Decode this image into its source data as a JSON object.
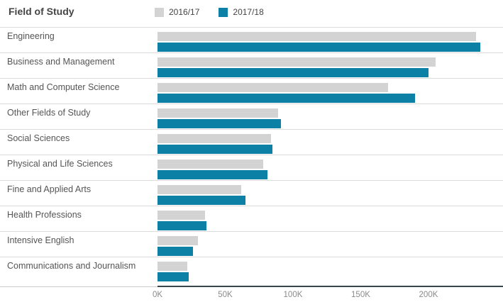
{
  "chart_data": {
    "type": "bar",
    "orientation": "horizontal",
    "title": "Field of Study",
    "categories": [
      "Engineering",
      "Business and Management",
      "Math and Computer Science",
      "Other Fields of Study",
      "Social Sciences",
      "Physical and Life Sciences",
      "Fine and Applied Arts",
      "Health Professions",
      "Intensive English",
      "Communications and Journalism"
    ],
    "series": [
      {
        "name": "2016/17",
        "color": "#d3d3d3",
        "values": [
          235000,
          205000,
          170000,
          89000,
          84000,
          78000,
          62000,
          35000,
          30000,
          22000
        ]
      },
      {
        "name": "2017/18",
        "color": "#0d80a6",
        "values": [
          238000,
          200000,
          190000,
          91000,
          85000,
          81000,
          65000,
          36000,
          26000,
          23000
        ]
      }
    ],
    "xlabel": "",
    "ylabel": "Field of Study",
    "xlim": [
      0,
      255000
    ],
    "x_ticks": [
      {
        "value": 0,
        "label": "0K"
      },
      {
        "value": 50000,
        "label": "50K"
      },
      {
        "value": 100000,
        "label": "100K"
      },
      {
        "value": 150000,
        "label": "150K"
      },
      {
        "value": 200000,
        "label": "200K"
      }
    ],
    "legend_position": "top",
    "grid": false
  },
  "style_colors": {
    "title_text": "#444444",
    "category_text": "#555555",
    "tick_text": "#8b8b8b",
    "axis_line": "#36454e",
    "row_separator": "#dcdcdc"
  }
}
